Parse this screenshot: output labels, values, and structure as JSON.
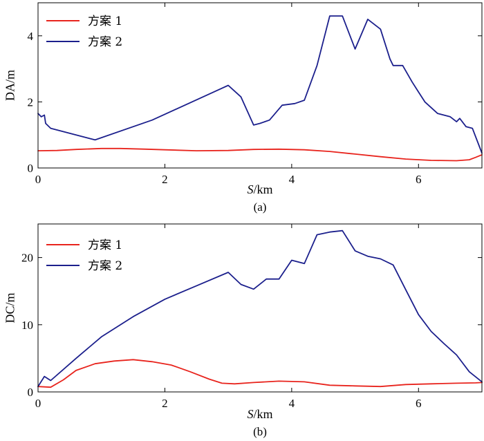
{
  "chart_data": [
    {
      "type": "line",
      "caption": "(a)",
      "ylabel": "DA/m",
      "xlabel_italic": "S",
      "xlabel_unit": "/km",
      "xlim": [
        0,
        7
      ],
      "ylim": [
        0,
        5
      ],
      "xticks": [
        0,
        2,
        4,
        6
      ],
      "yticks": [
        0,
        2,
        4
      ],
      "xtick_labels": [
        "0",
        "2",
        "4",
        "6"
      ],
      "ytick_labels": [
        "0",
        "2",
        "4"
      ],
      "legend": [
        "方案 1",
        "方案 2"
      ],
      "series": [
        {
          "name": "方案 1",
          "color": "#e8231c",
          "x": [
            0,
            0.3,
            0.6,
            1.0,
            1.3,
            1.7,
            2.0,
            2.5,
            3.0,
            3.4,
            3.8,
            4.2,
            4.6,
            5.0,
            5.4,
            5.8,
            6.2,
            6.6,
            6.8,
            6.9,
            7.0
          ],
          "y": [
            0.52,
            0.53,
            0.56,
            0.59,
            0.59,
            0.57,
            0.55,
            0.52,
            0.53,
            0.56,
            0.57,
            0.55,
            0.5,
            0.42,
            0.34,
            0.27,
            0.23,
            0.22,
            0.25,
            0.32,
            0.4
          ]
        },
        {
          "name": "方案 2",
          "color": "#1b1f8c",
          "x": [
            0,
            0.05,
            0.1,
            0.12,
            0.2,
            0.9,
            1.8,
            3.0,
            3.2,
            3.4,
            3.5,
            3.65,
            3.85,
            4.05,
            4.2,
            4.4,
            4.6,
            4.8,
            5.0,
            5.2,
            5.4,
            5.55,
            5.6,
            5.75,
            5.9,
            6.0,
            6.1,
            6.3,
            6.5,
            6.6,
            6.65,
            6.75,
            6.85,
            6.95,
            7.0
          ],
          "y": [
            1.65,
            1.55,
            1.6,
            1.35,
            1.2,
            0.85,
            1.45,
            2.5,
            2.15,
            1.3,
            1.35,
            1.45,
            1.9,
            1.95,
            2.05,
            3.1,
            4.6,
            4.6,
            3.6,
            4.5,
            4.2,
            3.3,
            3.1,
            3.1,
            2.6,
            2.3,
            2.0,
            1.65,
            1.55,
            1.4,
            1.5,
            1.25,
            1.2,
            0.7,
            0.45
          ]
        }
      ]
    },
    {
      "type": "line",
      "caption": "(b)",
      "ylabel": "DC/m",
      "xlabel_italic": "S",
      "xlabel_unit": "/km",
      "xlim": [
        0,
        7
      ],
      "ylim": [
        0,
        25
      ],
      "xticks": [
        0,
        2,
        4,
        6
      ],
      "yticks": [
        0,
        10,
        20
      ],
      "xtick_labels": [
        "0",
        "2",
        "4",
        "6"
      ],
      "ytick_labels": [
        "0",
        "10",
        "20"
      ],
      "legend": [
        "方案 1",
        "方案 2"
      ],
      "series": [
        {
          "name": "方案 1",
          "color": "#e8231c",
          "x": [
            0,
            0.2,
            0.4,
            0.6,
            0.9,
            1.2,
            1.5,
            1.8,
            2.1,
            2.4,
            2.7,
            2.9,
            3.1,
            3.4,
            3.8,
            4.2,
            4.6,
            5.0,
            5.4,
            5.8,
            6.2,
            6.6,
            6.9,
            7.0
          ],
          "y": [
            0.8,
            0.7,
            1.8,
            3.2,
            4.2,
            4.6,
            4.8,
            4.5,
            4.0,
            3.0,
            1.9,
            1.3,
            1.2,
            1.4,
            1.6,
            1.5,
            1.0,
            0.9,
            0.8,
            1.1,
            1.2,
            1.3,
            1.35,
            1.4
          ]
        },
        {
          "name": "方案 2",
          "color": "#1b1f8c",
          "x": [
            0,
            0.1,
            0.2,
            0.6,
            1.0,
            1.5,
            2.0,
            2.5,
            3.0,
            3.2,
            3.4,
            3.6,
            3.8,
            4.0,
            4.2,
            4.4,
            4.6,
            4.8,
            5.0,
            5.2,
            5.4,
            5.6,
            5.8,
            6.0,
            6.2,
            6.4,
            6.6,
            6.8,
            7.0
          ],
          "y": [
            0.8,
            2.3,
            1.7,
            5.0,
            8.2,
            11.2,
            13.8,
            15.8,
            17.8,
            16.0,
            15.3,
            16.8,
            16.8,
            19.6,
            19.1,
            23.4,
            23.8,
            24.0,
            21.0,
            20.2,
            19.8,
            18.9,
            15.2,
            11.5,
            9.0,
            7.2,
            5.5,
            3.0,
            1.5
          ]
        }
      ]
    }
  ]
}
